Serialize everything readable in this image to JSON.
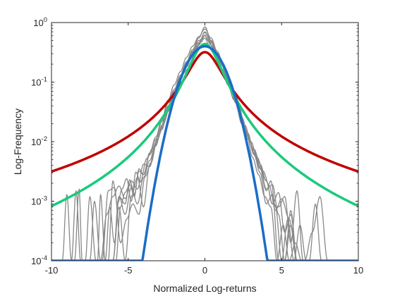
{
  "chart_data": {
    "type": "line",
    "title": "",
    "xlabel": "Normalized Log-returns",
    "ylabel": "Log-Frequency",
    "xlim": [
      -10,
      10
    ],
    "ylim": [
      0.0001,
      1
    ],
    "yscale": "log",
    "grid": false,
    "legend": "none",
    "x_ticks": [
      -10,
      -5,
      0,
      5,
      10
    ],
    "y_ticks": [
      {
        "value": 0.0001,
        "base": "10",
        "exp": "-4"
      },
      {
        "value": 0.001,
        "base": "10",
        "exp": "-3"
      },
      {
        "value": 0.01,
        "base": "10",
        "exp": "-2"
      },
      {
        "value": 0.1,
        "base": "10",
        "exp": "-1"
      },
      {
        "value": 1,
        "base": "10",
        "exp": "0"
      }
    ],
    "series": [
      {
        "kind": "empirical",
        "color": "#888888",
        "x": [
          -10,
          -9,
          -8.5,
          -8.2,
          -8,
          -7.6,
          -7.2,
          -6.8,
          -6.4,
          -6,
          -5.6,
          -5.2,
          -4.8,
          -4.4,
          -4,
          -3.6,
          -3.2,
          -2.8,
          -2.4,
          -2,
          -1.6,
          -1.2,
          -0.8,
          -0.4,
          0,
          0.4,
          0.8,
          1.2,
          1.6,
          2,
          2.4,
          2.8,
          3.2,
          3.6,
          4,
          4.4,
          4.8,
          5.2,
          5.6,
          6,
          6.5,
          7,
          8,
          10
        ],
        "y": [
          0.0001,
          0.0001,
          0.0001,
          0.0016,
          0.0001,
          0.0001,
          0.0001,
          0.0001,
          0.0001,
          0.0001,
          0.0008,
          0.0001,
          0.0012,
          0.0025,
          0.0008,
          0.004,
          0.009,
          0.016,
          0.04,
          0.07,
          0.12,
          0.21,
          0.33,
          0.5,
          0.6,
          0.42,
          0.3,
          0.2,
          0.11,
          0.06,
          0.025,
          0.014,
          0.006,
          0.003,
          0.0009,
          0.0013,
          0.0001,
          0.0001,
          0.0007,
          0.0001,
          0.0001,
          0.0001,
          0.0001,
          0.0001
        ]
      },
      {
        "kind": "empirical",
        "color": "#888888",
        "x": [
          -10,
          -7,
          -6.8,
          -6.5,
          -6.2,
          -5.9,
          -5.6,
          -5.2,
          -4.9,
          -4.6,
          -4.3,
          -4,
          -3.6,
          -3.2,
          -2.8,
          -2.4,
          -2,
          -1.6,
          -1.2,
          -0.8,
          -0.4,
          0,
          0.4,
          0.8,
          1.2,
          1.6,
          2,
          2.4,
          2.8,
          3.2,
          3.6,
          4,
          4.3,
          4.6,
          5,
          5.4,
          5.8,
          6.2,
          6.6,
          7,
          10
        ],
        "y": [
          0.0001,
          0.0001,
          0.0013,
          0.0001,
          0.0008,
          0.0002,
          0.0012,
          0.0009,
          0.0023,
          0.0013,
          0.0032,
          0.0028,
          0.006,
          0.011,
          0.022,
          0.045,
          0.075,
          0.13,
          0.22,
          0.35,
          0.55,
          0.85,
          0.5,
          0.31,
          0.19,
          0.1,
          0.05,
          0.022,
          0.012,
          0.0065,
          0.0035,
          0.0015,
          0.0022,
          0.0008,
          0.0001,
          0.0005,
          0.0001,
          0.0004,
          0.0001,
          0.0001,
          0.0001
        ]
      },
      {
        "kind": "empirical",
        "color": "#888888",
        "x": [
          -10,
          -8,
          -7.5,
          -7.2,
          -6.8,
          -6.4,
          -6,
          -5.6,
          -5.2,
          -4.8,
          -4.4,
          -4,
          -3.6,
          -3.2,
          -2.8,
          -2.4,
          -2,
          -1.6,
          -1.2,
          -0.8,
          -0.4,
          0,
          0.4,
          0.8,
          1.2,
          1.6,
          2,
          2.4,
          2.8,
          3.2,
          3.6,
          4,
          4.4,
          4.8,
          5.2,
          5.6,
          6,
          6.4,
          6.8,
          7.2,
          7.6,
          8,
          10
        ],
        "y": [
          0.0001,
          0.0001,
          0.0001,
          0.001,
          0.0001,
          0.0006,
          0.0012,
          0.0018,
          0.0011,
          0.0022,
          0.0016,
          0.0042,
          0.0038,
          0.0085,
          0.019,
          0.032,
          0.06,
          0.11,
          0.18,
          0.29,
          0.42,
          0.7,
          0.48,
          0.26,
          0.16,
          0.09,
          0.045,
          0.02,
          0.011,
          0.0075,
          0.0042,
          0.0022,
          0.0009,
          0.0008,
          0.0012,
          0.0002,
          0.0015,
          0.0001,
          0.0001,
          0.0009,
          0.0001,
          0.0001,
          0.0001
        ]
      },
      {
        "kind": "empirical",
        "color": "#888888",
        "x": [
          -10,
          -9.3,
          -9,
          -8.7,
          -8.4,
          -8.1,
          -7.8,
          -7.5,
          -7.1,
          -6.7,
          -6.3,
          -5.9,
          -5.5,
          -5.1,
          -4.7,
          -4.3,
          -3.9,
          -3.5,
          -3.1,
          -2.7,
          -2.3,
          -1.9,
          -1.5,
          -1.1,
          -0.7,
          -0.3,
          0,
          0.3,
          0.7,
          1.1,
          1.5,
          1.9,
          2.3,
          2.7,
          3.1,
          3.5,
          3.9,
          4.3,
          4.7,
          5.1,
          5.5,
          5.9,
          6.3,
          6.8,
          7.3,
          10
        ],
        "y": [
          0.0001,
          0.0001,
          0.0013,
          0.0001,
          0.0015,
          0.0001,
          0.0001,
          0.0012,
          0.0001,
          0.0001,
          0.0015,
          0.0017,
          0.0002,
          0.0005,
          0.0009,
          0.0006,
          0.0026,
          0.0045,
          0.011,
          0.02,
          0.038,
          0.065,
          0.1,
          0.17,
          0.28,
          0.46,
          0.55,
          0.4,
          0.27,
          0.16,
          0.09,
          0.05,
          0.028,
          0.014,
          0.0055,
          0.0028,
          0.0012,
          0.0008,
          0.0001,
          0.0004,
          0.0001,
          0.0002,
          0.0001,
          0.0001,
          0.0001,
          0.0001
        ]
      },
      {
        "kind": "empirical",
        "color": "#888888",
        "x": [
          -10,
          -6.3,
          -6,
          -5.7,
          -5.4,
          -5.1,
          -4.8,
          -4.5,
          -4.2,
          -3.8,
          -3.4,
          -3,
          -2.6,
          -2.2,
          -1.8,
          -1.4,
          -1,
          -0.6,
          -0.2,
          0,
          0.2,
          0.6,
          1,
          1.4,
          1.8,
          2.2,
          2.6,
          3,
          3.4,
          3.8,
          4.2,
          4.6,
          5,
          5.5,
          6,
          6.5,
          7,
          7.5,
          8,
          10
        ],
        "y": [
          0.0001,
          0.0001,
          0.0022,
          0.0009,
          0.0016,
          0.0024,
          0.001,
          0.0031,
          0.0021,
          0.0052,
          0.0078,
          0.013,
          0.025,
          0.048,
          0.085,
          0.14,
          0.24,
          0.38,
          0.52,
          0.62,
          0.5,
          0.36,
          0.23,
          0.13,
          0.07,
          0.04,
          0.019,
          0.01,
          0.0055,
          0.0032,
          0.0018,
          0.0007,
          0.0011,
          0.0005,
          0.0001,
          0.0001,
          0.0003,
          0.0012,
          0.0001,
          0.0001
        ]
      },
      {
        "kind": "empirical",
        "color": "#888888",
        "x": [
          -10,
          -5.8,
          -5.5,
          -5.2,
          -4.9,
          -4.6,
          -4.3,
          -4,
          -3.6,
          -3.2,
          -2.8,
          -2.4,
          -2,
          -1.6,
          -1.2,
          -0.8,
          -0.4,
          0,
          0.4,
          0.8,
          1.2,
          1.6,
          2,
          2.4,
          2.8,
          3.2,
          3.6,
          4,
          4.4,
          4.8,
          5.2,
          5.6,
          6,
          10
        ],
        "y": [
          0.0001,
          0.0001,
          0.0008,
          0.0014,
          0.0019,
          0.0012,
          0.0035,
          0.0028,
          0.0065,
          0.012,
          0.024,
          0.05,
          0.09,
          0.15,
          0.26,
          0.4,
          0.58,
          0.78,
          0.55,
          0.33,
          0.2,
          0.1,
          0.05,
          0.024,
          0.012,
          0.0062,
          0.0036,
          0.0022,
          0.0009,
          0.0014,
          0.0003,
          0.0006,
          0.0001,
          0.0001
        ]
      },
      {
        "kind": "empirical",
        "color": "#888888",
        "x": [
          -10,
          -6,
          -5.6,
          -5.2,
          -4.8,
          -4.4,
          -4,
          -3.6,
          -3.2,
          -2.8,
          -2.4,
          -2,
          -1.6,
          -1.2,
          -0.8,
          -0.4,
          0,
          0.4,
          0.8,
          1.2,
          1.6,
          2,
          2.4,
          2.8,
          3.2,
          3.6,
          4,
          4.4,
          4.8,
          5.2,
          5.6,
          6,
          10
        ],
        "y": [
          0.0001,
          0.0001,
          0.0012,
          0.0006,
          0.0017,
          0.0009,
          0.0025,
          0.0048,
          0.0095,
          0.017,
          0.035,
          0.065,
          0.12,
          0.2,
          0.32,
          0.46,
          0.68,
          0.46,
          0.3,
          0.18,
          0.1,
          0.055,
          0.026,
          0.013,
          0.007,
          0.0038,
          0.0016,
          0.0019,
          0.0006,
          0.0001,
          0.0004,
          0.0001,
          0.0001
        ]
      },
      {
        "kind": "model",
        "color": "#c00000",
        "width": 3.5,
        "func": "cauchy",
        "gamma": 1.0
      },
      {
        "kind": "model",
        "color": "#1bc97a",
        "width": 3.5,
        "func": "student_t",
        "nu": 1.8,
        "scale": 0.8
      },
      {
        "kind": "model",
        "color": "#1a6dc8",
        "width": 3.5,
        "func": "gaussian",
        "sigma": 1.0
      }
    ]
  }
}
